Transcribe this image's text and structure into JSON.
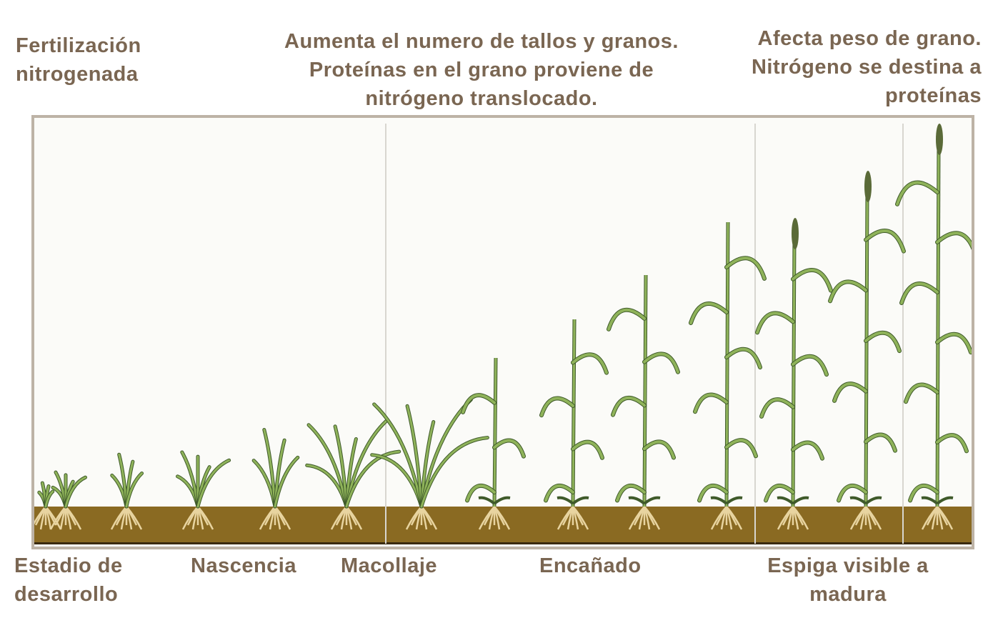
{
  "header": {
    "left": [
      "Fertilización",
      "nitrogenada"
    ],
    "center": [
      "Aumenta el numero de tallos y granos.",
      "Proteínas en el grano proviene de",
      "nitrógeno translocado."
    ],
    "right": [
      "Afecta peso de grano.",
      "Nitrógeno se destina a",
      "proteínas"
    ]
  },
  "stages": {
    "label": [
      "Estadio de",
      "desarrollo"
    ],
    "nascencia": "Nascencia",
    "macollaje": "Macollaje",
    "encanado": "Encañado",
    "espiga": [
      "Espiga visible a",
      "madura"
    ]
  },
  "colors": {
    "text": "#7a6652",
    "soil": "#8a6a22",
    "leaf": "#8fb35a",
    "leaf_edge": "#3f5a2a",
    "root": "#e8d4a0",
    "frame": "#bdb3a6"
  }
}
